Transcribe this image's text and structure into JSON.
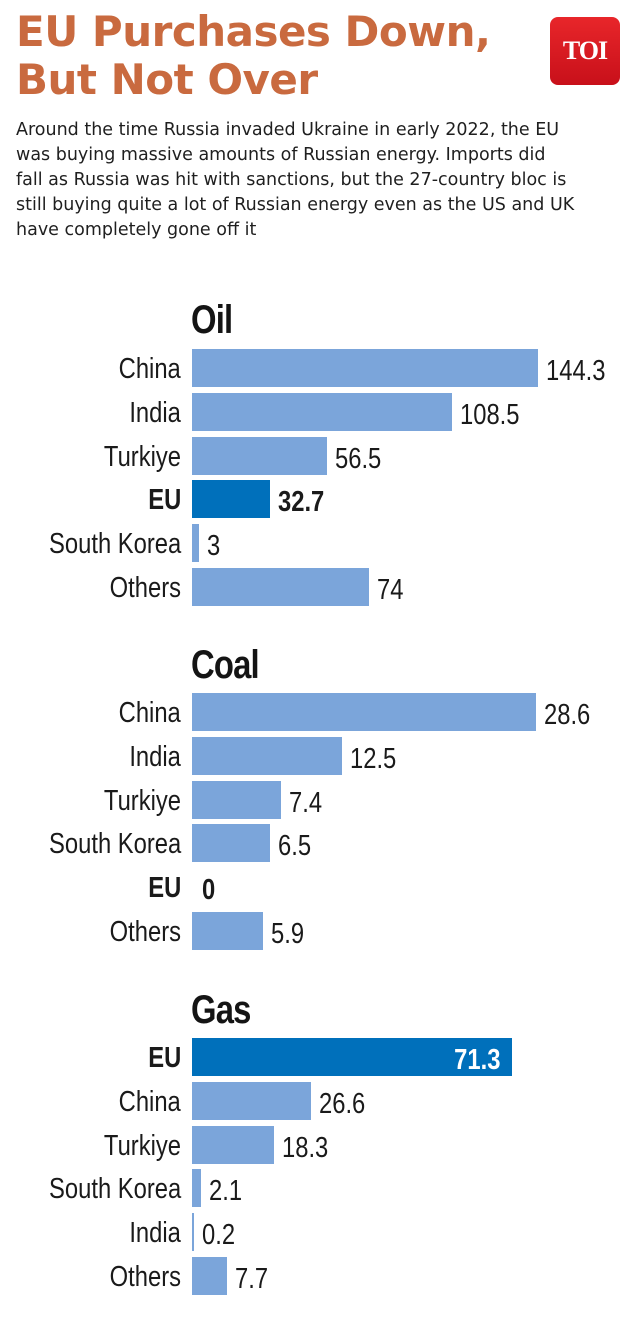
{
  "header": {
    "title_line1": "EU Purchases Down,",
    "title_line2": "But Not Over",
    "logo_text": "TOI",
    "intro": "Around the time Russia invaded Ukraine in early 2022, the EU was buying massive amounts of Russian energy. Imports did fall as Russia was hit with sanctions, but the 27-country bloc is still buying quite a lot of Russian energy even as the US and UK have completely gone off it"
  },
  "colors": {
    "title": "#c96a3f",
    "bar_default": "#7ba5da",
    "bar_highlight": "#0070bb",
    "logo_bg": "#e01e24"
  },
  "chart_data": [
    {
      "type": "bar",
      "orientation": "horizontal",
      "title": "Oil",
      "categories": [
        "China",
        "India",
        "Turkiye",
        "EU",
        "South Korea",
        "Others"
      ],
      "values": [
        144.3,
        108.5,
        56.5,
        32.7,
        3,
        74
      ],
      "value_labels": [
        "144.3",
        "108.5",
        "56.5",
        "32.7",
        "3",
        "74"
      ],
      "highlight": "EU",
      "xlabel": "",
      "ylabel": "",
      "grid": false
    },
    {
      "type": "bar",
      "orientation": "horizontal",
      "title": "Coal",
      "categories": [
        "China",
        "India",
        "Turkiye",
        "South Korea",
        "EU",
        "Others"
      ],
      "values": [
        28.6,
        12.5,
        7.4,
        6.5,
        0,
        5.9
      ],
      "value_labels": [
        "28.6",
        "12.5",
        "7.4",
        "6.5",
        "0",
        "5.9"
      ],
      "highlight": "EU",
      "xlabel": "",
      "ylabel": "",
      "grid": false
    },
    {
      "type": "bar",
      "orientation": "horizontal",
      "title": "Gas",
      "categories": [
        "EU",
        "China",
        "Turkiye",
        "South Korea",
        "India",
        "Others"
      ],
      "values": [
        71.3,
        26.6,
        18.3,
        2.1,
        0.2,
        7.7
      ],
      "value_labels": [
        "71.3",
        "26.6",
        "18.3",
        "2.1",
        "0.2",
        "7.7"
      ],
      "highlight": "EU",
      "xlabel": "",
      "ylabel": "",
      "grid": false
    }
  ]
}
